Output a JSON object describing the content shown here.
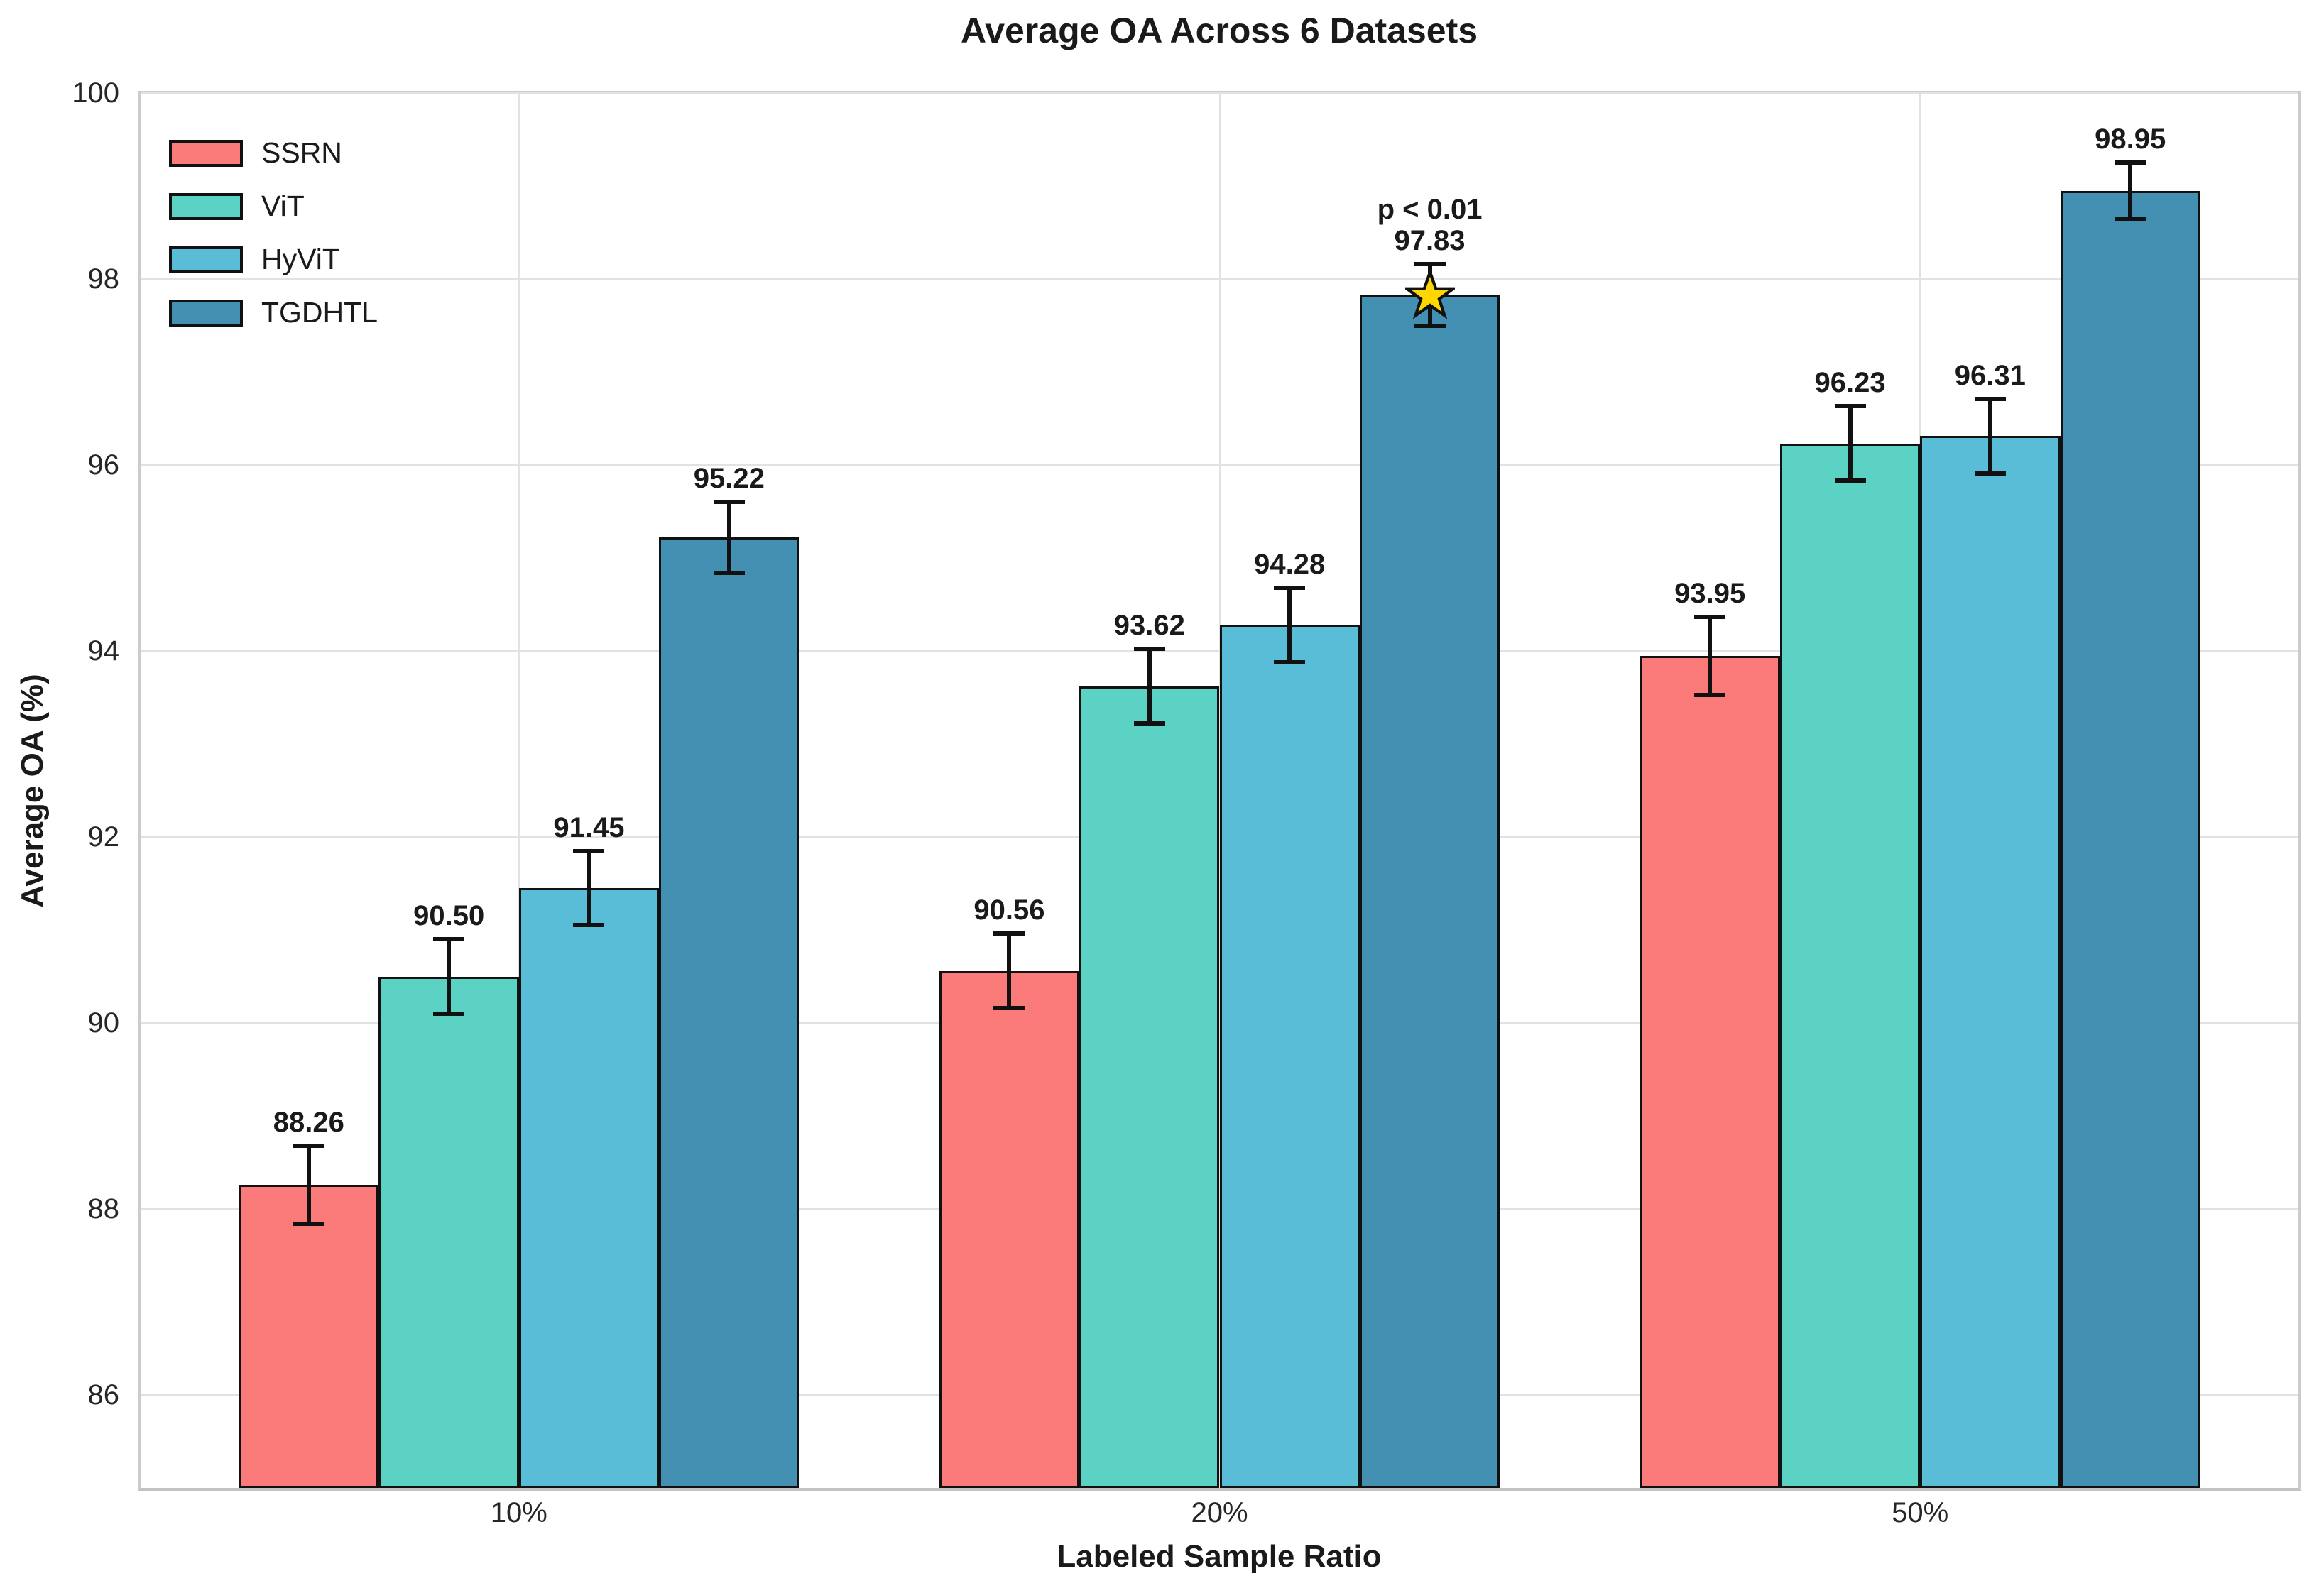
{
  "chart_data": {
    "type": "bar",
    "title": "Average OA Across 6 Datasets",
    "xlabel": "Labeled Sample Ratio",
    "ylabel": "Average OA (%)",
    "categories": [
      "10%",
      "20%",
      "50%"
    ],
    "series": [
      {
        "name": "SSRN",
        "color": "#FB7A7A",
        "values": [
          88.26,
          90.56,
          93.95
        ],
        "errors": [
          0.42,
          0.4,
          0.42
        ]
      },
      {
        "name": "ViT",
        "color": "#5BD2C3",
        "values": [
          90.5,
          93.62,
          96.23
        ],
        "errors": [
          0.4,
          0.4,
          0.4
        ]
      },
      {
        "name": "HyViT",
        "color": "#59BDD7",
        "values": [
          91.45,
          94.28,
          96.31
        ],
        "errors": [
          0.4,
          0.4,
          0.4
        ]
      },
      {
        "name": "TGDHTL",
        "color": "#4390B2",
        "values": [
          95.22,
          97.83,
          98.95
        ],
        "errors": [
          0.38,
          0.33,
          0.3
        ]
      }
    ],
    "ylim": [
      85,
      100
    ],
    "yticks": [
      86,
      88,
      90,
      92,
      94,
      96,
      98,
      100
    ],
    "grid": true,
    "legend_position": "upper-left",
    "annotation": {
      "text": "p < 0.01",
      "series": "TGDHTL",
      "category": "20%",
      "marker": "star",
      "marker_color": "#FFD700"
    },
    "colors": {
      "bar_edge": "#111111",
      "error_bar": "#111111",
      "gridline": "#e2e2e2",
      "spine": "#cccccc",
      "tick_text": "#262626",
      "label_text": "#1a1a1a"
    }
  }
}
